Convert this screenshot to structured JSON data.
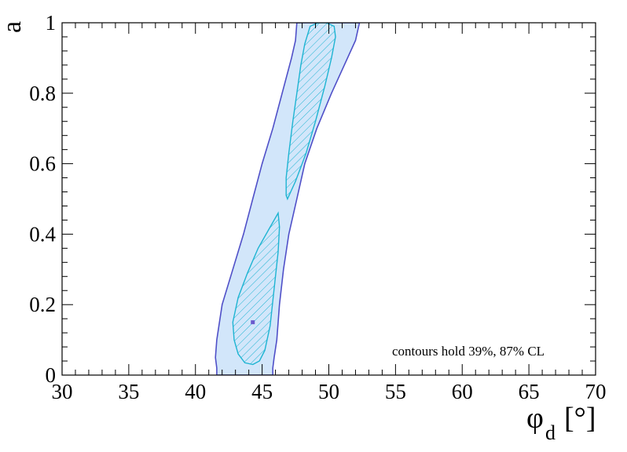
{
  "chart_data": {
    "type": "contour",
    "xlabel": "φ",
    "xlabel_sub": "d",
    "xlabel_unit": "[°]",
    "ylabel": "a",
    "xlim": [
      30,
      70
    ],
    "ylim": [
      0,
      1
    ],
    "x_ticks": [
      "30",
      "35",
      "40",
      "45",
      "50",
      "55",
      "60",
      "65",
      "70"
    ],
    "y_ticks": [
      "0",
      "0.2",
      "0.4",
      "0.6",
      "0.8",
      "1"
    ],
    "x_tick_values": [
      30,
      35,
      40,
      45,
      50,
      55,
      60,
      65,
      70
    ],
    "y_tick_values": [
      0,
      0.2,
      0.4,
      0.6,
      0.8,
      1
    ],
    "annotation": "contours hold 39%, 87% CL",
    "colors": {
      "outer_fill": "#d2e6fa",
      "outer_line": "#5050c8",
      "inner_line": "#1eb4d2",
      "inner_hatch": "#1eb4d2",
      "best_fit": "#6a5acd"
    },
    "best_fit": {
      "x": 44.3,
      "y": 0.15
    },
    "contours": [
      {
        "level": "87%",
        "points": [
          [
            41.6,
            0
          ],
          [
            41.6,
            0.02
          ],
          [
            41.5,
            0.05
          ],
          [
            41.6,
            0.1
          ],
          [
            42.0,
            0.2
          ],
          [
            42.8,
            0.3
          ],
          [
            43.6,
            0.4
          ],
          [
            44.3,
            0.5
          ],
          [
            45.0,
            0.6
          ],
          [
            45.8,
            0.7
          ],
          [
            46.5,
            0.8
          ],
          [
            47.2,
            0.9
          ],
          [
            47.5,
            0.95
          ],
          [
            47.6,
            1.0
          ],
          [
            52.3,
            1.0
          ],
          [
            52.0,
            0.95
          ],
          [
            51.4,
            0.9
          ],
          [
            50.2,
            0.8
          ],
          [
            49.1,
            0.7
          ],
          [
            48.2,
            0.6
          ],
          [
            47.6,
            0.5
          ],
          [
            47.0,
            0.4
          ],
          [
            46.6,
            0.3
          ],
          [
            46.3,
            0.2
          ],
          [
            46.1,
            0.1
          ],
          [
            45.9,
            0.05
          ],
          [
            45.8,
            0.02
          ],
          [
            45.8,
            0
          ]
        ]
      },
      {
        "level": "39% (lower)",
        "points": [
          [
            44.3,
            0.03
          ],
          [
            43.7,
            0.035
          ],
          [
            43.2,
            0.06
          ],
          [
            42.9,
            0.1
          ],
          [
            42.8,
            0.15
          ],
          [
            43.2,
            0.22
          ],
          [
            43.9,
            0.29
          ],
          [
            44.7,
            0.36
          ],
          [
            45.6,
            0.42
          ],
          [
            46.2,
            0.46
          ],
          [
            46.3,
            0.42
          ],
          [
            46.2,
            0.35
          ],
          [
            46.0,
            0.28
          ],
          [
            45.8,
            0.21
          ],
          [
            45.6,
            0.14
          ],
          [
            45.2,
            0.07
          ],
          [
            44.8,
            0.04
          ],
          [
            44.3,
            0.03
          ]
        ]
      },
      {
        "level": "39% (upper)",
        "points": [
          [
            46.8,
            0.51
          ],
          [
            46.8,
            0.56
          ],
          [
            47.0,
            0.63
          ],
          [
            47.3,
            0.72
          ],
          [
            47.6,
            0.8
          ],
          [
            47.9,
            0.88
          ],
          [
            48.2,
            0.94
          ],
          [
            48.6,
            0.99
          ],
          [
            49.2,
            1.0
          ],
          [
            49.8,
            1.0
          ],
          [
            50.4,
            0.99
          ],
          [
            50.5,
            0.96
          ],
          [
            50.2,
            0.9
          ],
          [
            49.7,
            0.82
          ],
          [
            49.0,
            0.72
          ],
          [
            48.3,
            0.63
          ],
          [
            47.5,
            0.55
          ],
          [
            46.9,
            0.5
          ],
          [
            46.8,
            0.51
          ]
        ]
      }
    ]
  }
}
